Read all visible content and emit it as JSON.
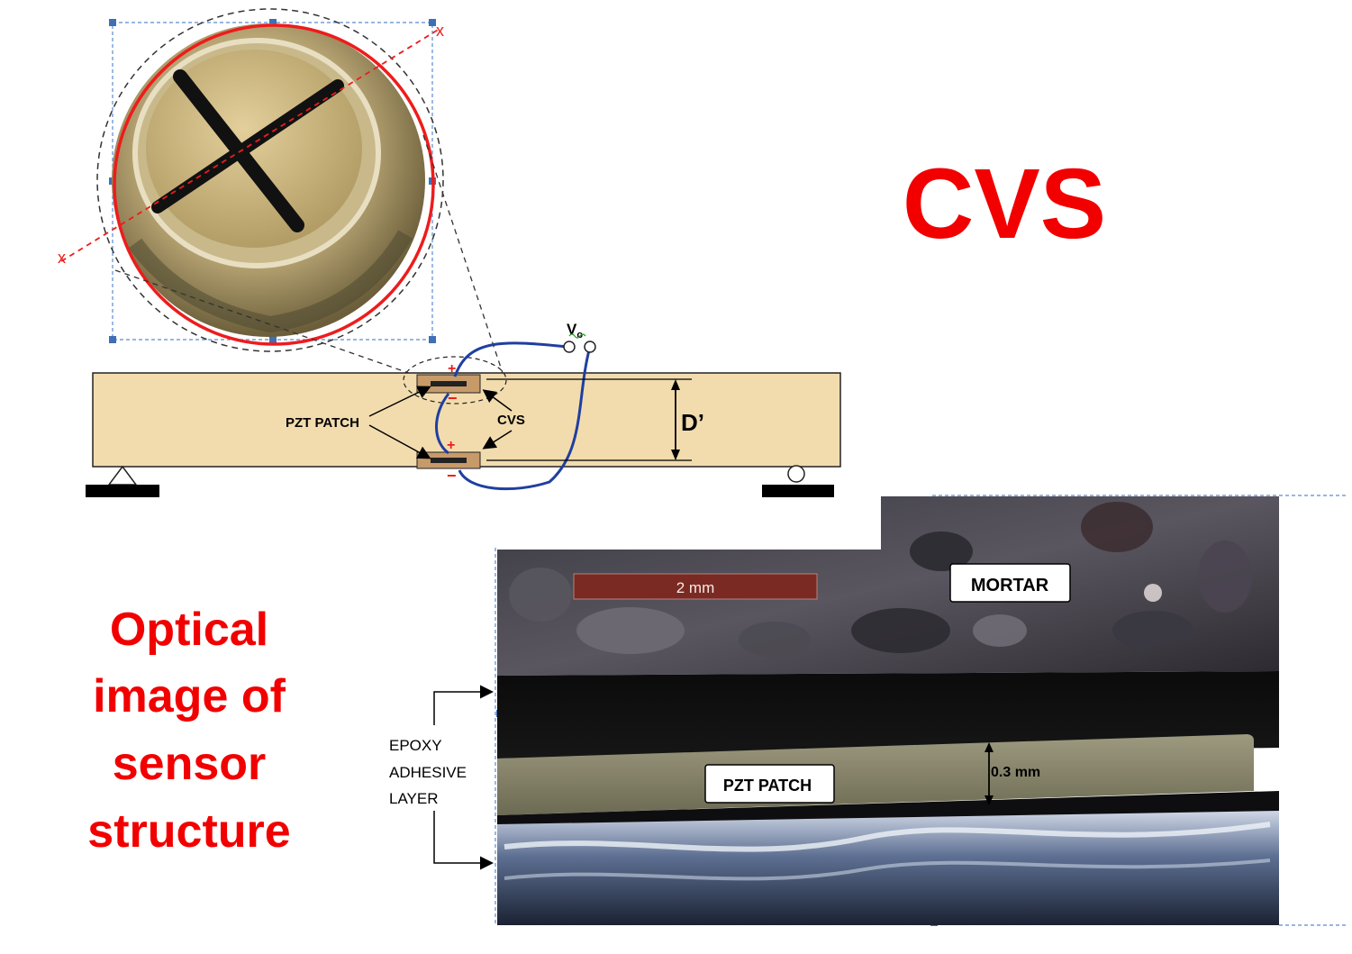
{
  "title": "CVS",
  "caption": [
    "Optical",
    "image of",
    "sensor",
    "structure"
  ],
  "beam": {
    "pzt_label": "PZT PATCH",
    "cvs_label": "CVS",
    "depth_label": "D’",
    "voltage_label": "V",
    "voltage_sub": "o",
    "plus": "+",
    "minus": "−",
    "axis_marker": "x"
  },
  "micrograph": {
    "scale_bar": "2 mm",
    "mortar_label": "MORTAR",
    "pzt_label": "PZT PATCH",
    "thickness_label": "0.3 mm",
    "epoxy_label": [
      "EPOXY",
      "ADHESIVE",
      "LAYER"
    ]
  },
  "colors": {
    "accent_red": "#f20000",
    "wire_blue": "#1f3fa0",
    "beam_fill": "#f2dcae",
    "scale_bar": "#7a2a22"
  }
}
